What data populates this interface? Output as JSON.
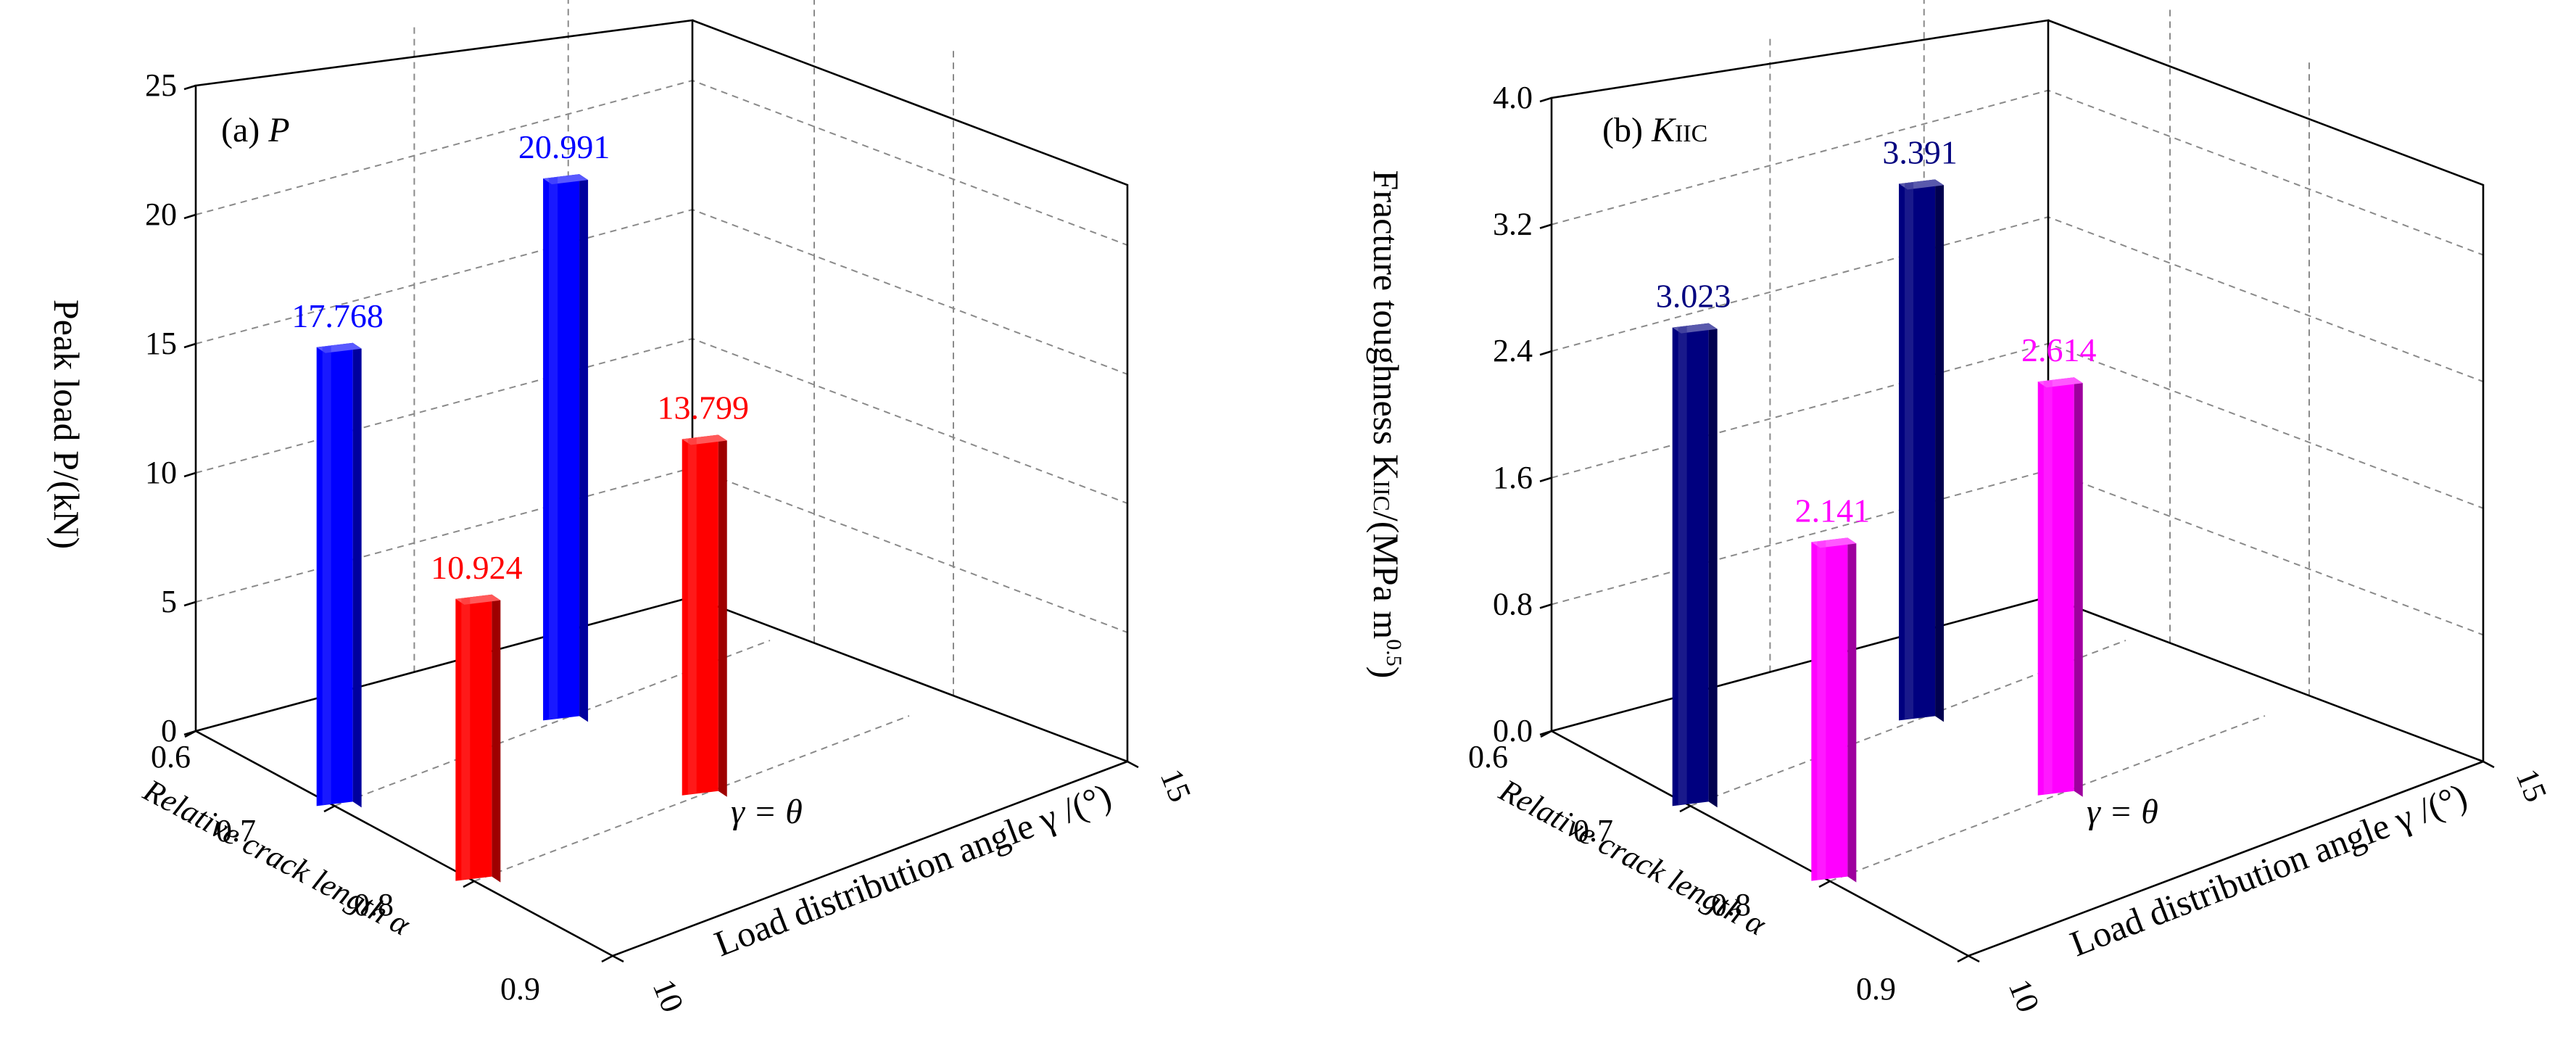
{
  "chart_data": [
    {
      "type": "bar3d",
      "panel_label": "(a)",
      "panel_symbol": "P",
      "ylabel": "Peak load P/(kN)",
      "xlabel": "Relative crack length α",
      "zlabel": "Load distribution angle γ /(°)",
      "annotation": "γ = θ",
      "ylim": [
        0,
        25
      ],
      "y_ticks": [
        "0",
        "5",
        "10",
        "15",
        "20",
        "25"
      ],
      "x_ticks": [
        "0.6",
        "0.7",
        "0.8",
        "0.9"
      ],
      "z_ticks": [
        "10",
        "15"
      ],
      "series": [
        {
          "name": "α = 0.7",
          "color": "#0000ff",
          "points": [
            {
              "gamma": 10,
              "alpha": 0.7,
              "value": 17.768
            },
            {
              "gamma": 15,
              "alpha": 0.7,
              "value": 20.991
            }
          ]
        },
        {
          "name": "α = 0.8",
          "color": "#ff0000",
          "points": [
            {
              "gamma": 10,
              "alpha": 0.8,
              "value": 10.924
            },
            {
              "gamma": 15,
              "alpha": 0.8,
              "value": 13.799
            }
          ]
        }
      ],
      "labels": [
        "17.768",
        "10.924",
        "20.991",
        "13.799"
      ]
    },
    {
      "type": "bar3d",
      "panel_label": "(b)",
      "panel_symbol": "K",
      "panel_subscript": "IIC",
      "ylabel_main": "Fracture toughness K",
      "ylabel_sub": "IIC",
      "ylabel_tail": "/(MPa m",
      "ylabel_sup": "0.5",
      "ylabel_end": ")",
      "xlabel": "Relative crack length α",
      "zlabel": "Load distribution angle γ /(°)",
      "annotation": "γ = θ",
      "ylim": [
        0,
        4.0
      ],
      "y_ticks": [
        "0.0",
        "0.8",
        "1.6",
        "2.4",
        "3.2",
        "4.0"
      ],
      "x_ticks": [
        "0.6",
        "0.7",
        "0.8",
        "0.9"
      ],
      "z_ticks": [
        "10",
        "15"
      ],
      "series": [
        {
          "name": "α = 0.7",
          "color": "#00007f",
          "points": [
            {
              "gamma": 10,
              "alpha": 0.7,
              "value": 3.023
            },
            {
              "gamma": 15,
              "alpha": 0.7,
              "value": 3.391
            }
          ]
        },
        {
          "name": "α = 0.8",
          "color": "#ff00ff",
          "points": [
            {
              "gamma": 10,
              "alpha": 0.8,
              "value": 2.141
            },
            {
              "gamma": 15,
              "alpha": 0.8,
              "value": 2.614
            }
          ]
        }
      ],
      "labels": [
        "3.023",
        "2.141",
        "3.391",
        "2.614"
      ]
    }
  ]
}
